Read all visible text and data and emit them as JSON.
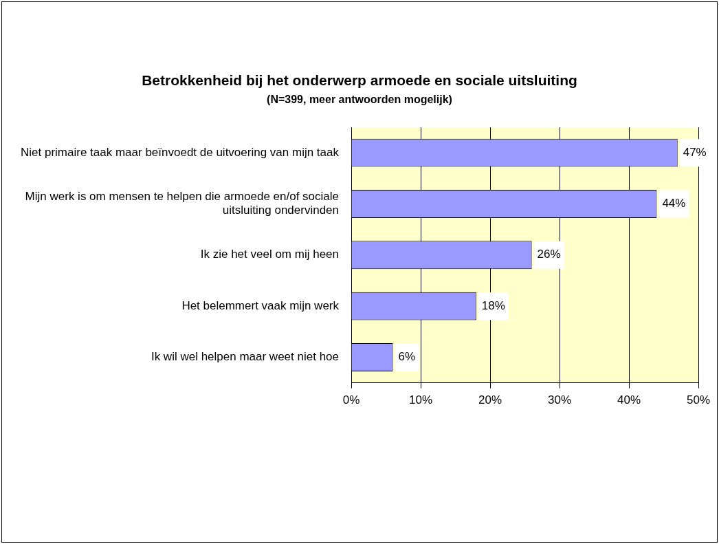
{
  "chart_data": {
    "type": "bar",
    "orientation": "horizontal",
    "title": "Betrokkenheid bij het onderwerp armoede en sociale uitsluiting",
    "subtitle": "(N=399, meer antwoorden mogelijk)",
    "categories": [
      "Niet primaire taak maar beïnvoedt de uitvoering van mijn taak",
      "Mijn werk is om mensen te helpen die armoede en/of sociale uitsluiting ondervinden",
      "Ik zie het veel om mij heen",
      "Het belemmert vaak mijn werk",
      "Ik wil wel helpen maar weet niet hoe"
    ],
    "values": [
      47,
      44,
      26,
      18,
      6
    ],
    "value_labels": [
      "47%",
      "44%",
      "26%",
      "18%",
      "6%"
    ],
    "color": "#9999ff",
    "xlim": [
      0,
      50
    ],
    "xticks": [
      {
        "value": 0,
        "label": "0%"
      },
      {
        "value": 10,
        "label": "10%"
      },
      {
        "value": 20,
        "label": "20%"
      },
      {
        "value": 30,
        "label": "30%"
      },
      {
        "value": 40,
        "label": "40%"
      },
      {
        "value": 50,
        "label": "50%"
      }
    ],
    "grid": "x",
    "legend": false
  }
}
